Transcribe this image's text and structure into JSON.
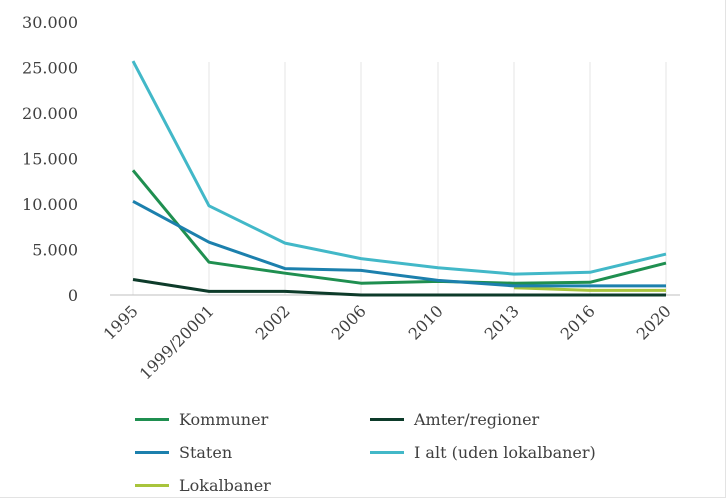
{
  "chart_data": {
    "type": "line",
    "title": "",
    "xlabel": "",
    "ylabel": "",
    "categories": [
      "1995",
      "1999/20001",
      "2002",
      "2006",
      "2010",
      "2013",
      "2016",
      "2020"
    ],
    "ylim": [
      0,
      30000
    ],
    "yticks": [
      "0",
      "5.000",
      "10.000",
      "15.000",
      "20.000",
      "25.000",
      "30.000"
    ],
    "ytick_values": [
      0,
      5000,
      10000,
      15000,
      20000,
      25000,
      30000
    ],
    "grid": "vertical at categories",
    "legend_position": "bottom",
    "series": [
      {
        "name": "Kommuner",
        "color": "#1f8f50",
        "values": [
          13700,
          3600,
          2400,
          1300,
          1500,
          1300,
          1400,
          3500
        ]
      },
      {
        "name": "Amter/regioner",
        "color": "#0d3b2a",
        "values": [
          1700,
          400,
          400,
          0,
          0,
          0,
          0,
          0
        ]
      },
      {
        "name": "Staten",
        "color": "#1c80ad",
        "values": [
          10300,
          5800,
          2900,
          2700,
          1600,
          1000,
          1000,
          1000
        ]
      },
      {
        "name": "I alt (uden lokalbaner)",
        "color": "#42b8c8",
        "values": [
          25700,
          9800,
          5700,
          4000,
          3000,
          2300,
          2500,
          4500
        ]
      },
      {
        "name": "Lokalbaner",
        "color": "#a8c43c",
        "values": [
          null,
          null,
          null,
          null,
          null,
          800,
          500,
          500
        ]
      }
    ]
  }
}
